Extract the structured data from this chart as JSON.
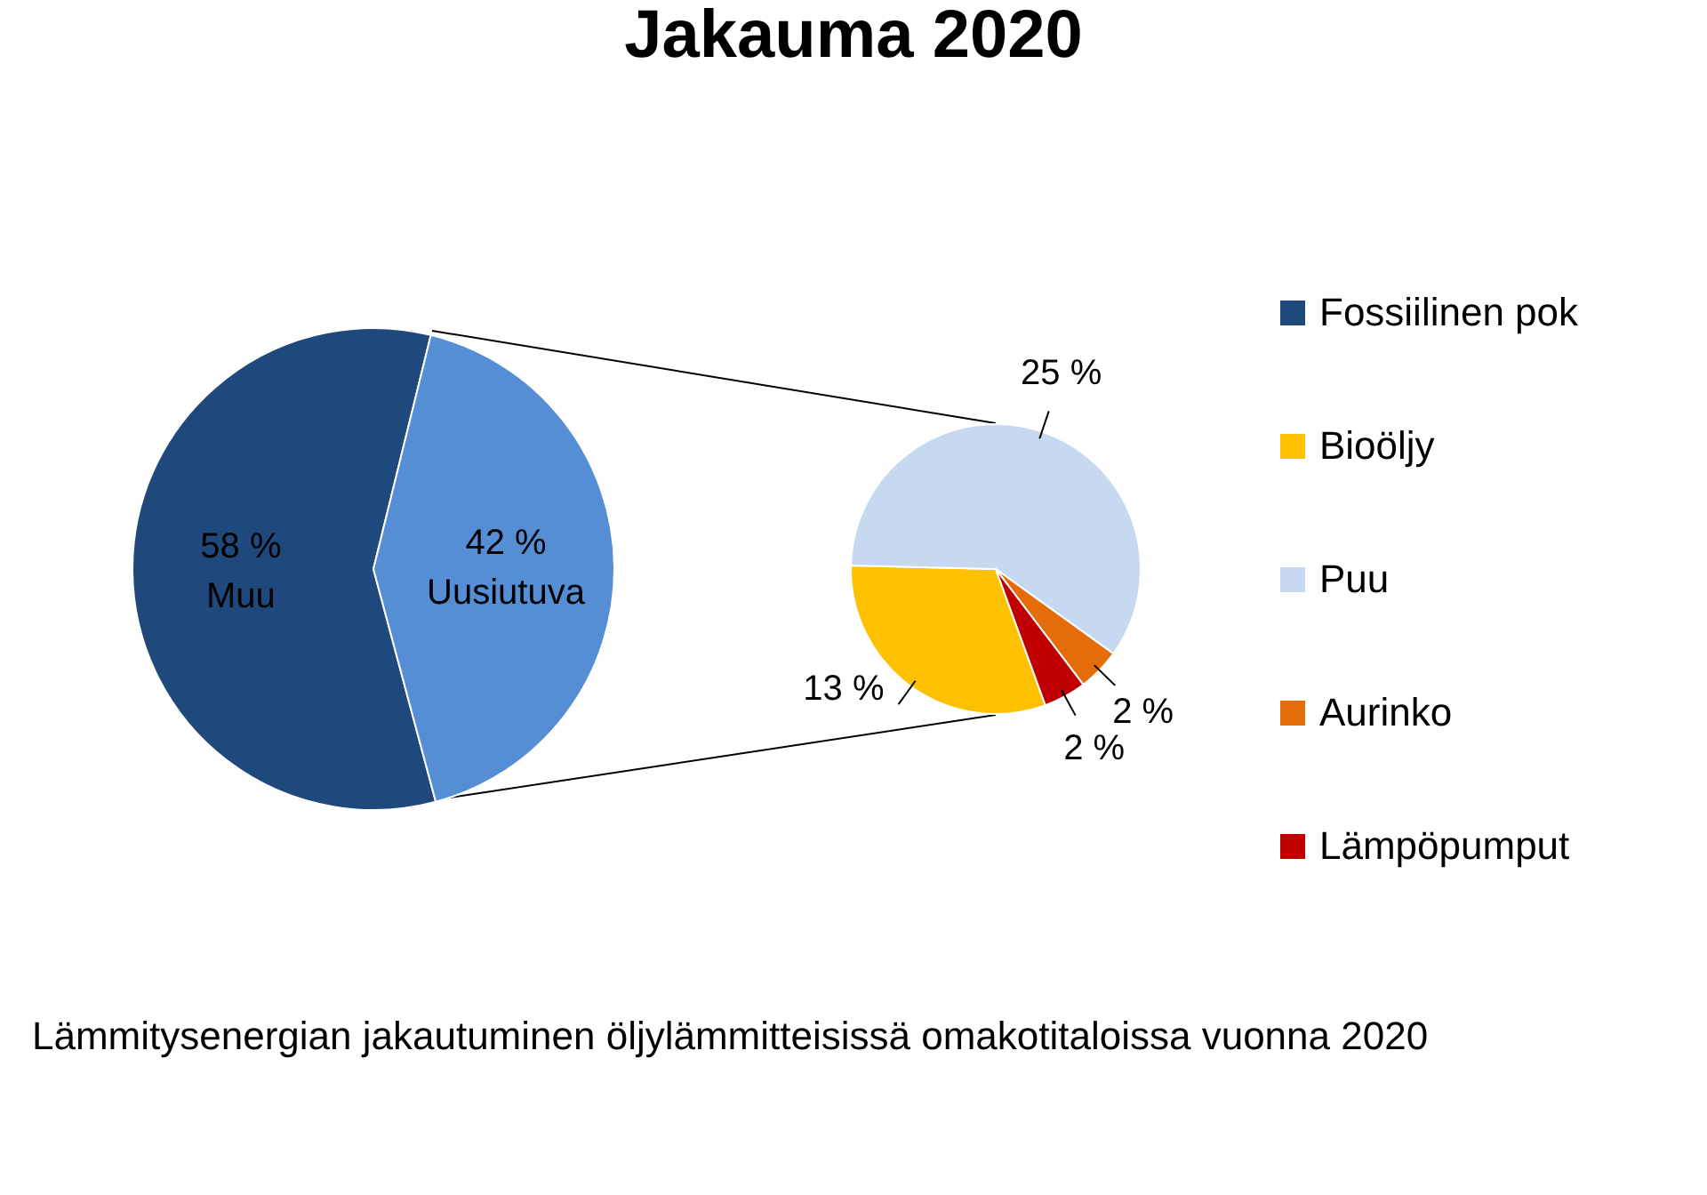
{
  "chart_data": [
    {
      "type": "pie",
      "title": "Jakauma 2020",
      "categories": [
        "Fossiilinen pok",
        null
      ],
      "values": [
        58,
        42
      ],
      "colors": [
        "#1f487c",
        "#558ed5"
      ],
      "value_labels": [
        "58 %",
        "42 %"
      ],
      "annotations": [
        "Muu",
        "Uusiutuva"
      ],
      "legend": "right"
    },
    {
      "type": "pie",
      "categories": [
        "Bioöljy",
        "Puu",
        "Aurinko",
        "Lämpöpumput"
      ],
      "values": [
        13,
        25,
        2,
        2
      ],
      "colors": [
        "#ffc000",
        "#c6d9f0",
        "#e46c0a",
        "#c00000"
      ],
      "value_labels": [
        "13 %",
        "25 %",
        "2 %",
        "2 %"
      ],
      "legend": "right",
      "annotations": [
        "Lämmitysenergian jakautuminen öljylämmitteisissä omakotitaloissa vuonna 2020"
      ]
    }
  ]
}
